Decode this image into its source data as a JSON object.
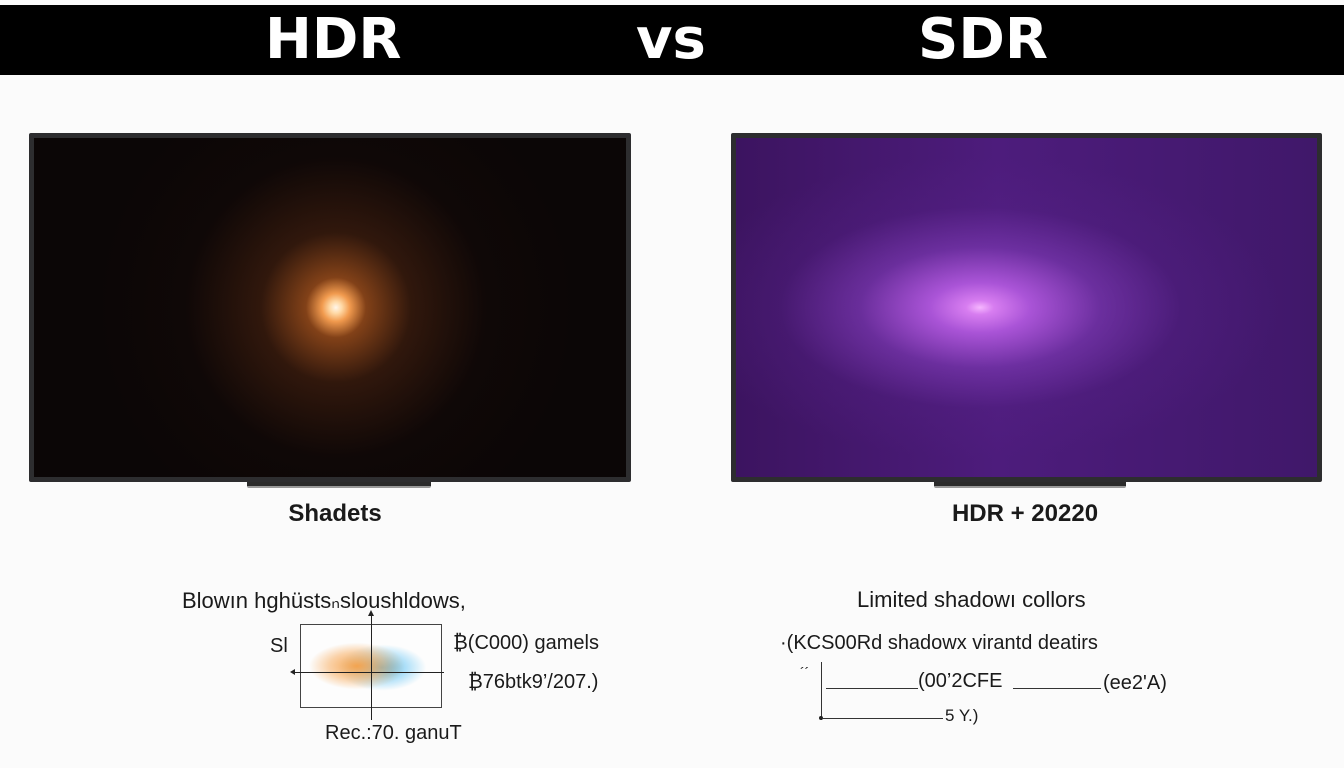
{
  "header": {
    "left": "HDR",
    "middle": "vs",
    "right": "SDR"
  },
  "left_panel": {
    "caption": "Shadets",
    "description": "Blowın hghüstsₙsloushldows,",
    "gamut_axis_label": "Sl",
    "gamut_line_1": "₿(C000) gamels",
    "gamut_line_2": "₿76btk9’/207.)",
    "gamut_caption": "Rec.:70. ganuT",
    "highlight_color": "#f19a4e"
  },
  "right_panel": {
    "caption": "HDR + 20220",
    "description": "Limited shadowı collors",
    "detail_line": "·(KCS00Rd shadowx virantd deatirs",
    "code_left": "(00’2CFE",
    "code_right": "(ee2'A)",
    "code_bottom": "5 Y.)",
    "tick_label": "´´",
    "highlight_color": "#c46be8"
  }
}
